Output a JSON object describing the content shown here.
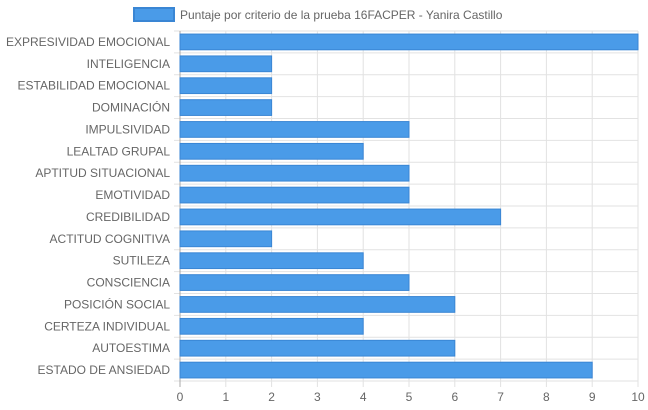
{
  "chart_data": {
    "type": "bar",
    "orientation": "horizontal",
    "categories": [
      "EXPRESIVIDAD EMOCIONAL",
      "INTELIGENCIA",
      "ESTABILIDAD EMOCIONAL",
      "DOMINACIÓN",
      "IMPULSIVIDAD",
      "LEALTAD GRUPAL",
      "APTITUD SITUACIONAL",
      "EMOTIVIDAD",
      "CREDIBILIDAD",
      "ACTITUD COGNITIVA",
      "SUTILEZA",
      "CONSCIENCIA",
      "POSICIÓN SOCIAL",
      "CERTEZA INDIVIDUAL",
      "AUTOESTIMA",
      "ESTADO DE ANSIEDAD"
    ],
    "series": [
      {
        "name": "Puntaje por criterio de la prueba 16FACPER - Yanira Castillo",
        "values": [
          10,
          2,
          2,
          2,
          5,
          4,
          5,
          5,
          7,
          2,
          4,
          5,
          6,
          4,
          6,
          9
        ],
        "color": "#4a9be8",
        "border_color": "#3a86d4"
      }
    ],
    "xlim": [
      0,
      10
    ],
    "x_ticks": [
      0,
      1,
      2,
      3,
      4,
      5,
      6,
      7,
      8,
      9,
      10
    ],
    "grid": true,
    "legend_position": "top"
  }
}
